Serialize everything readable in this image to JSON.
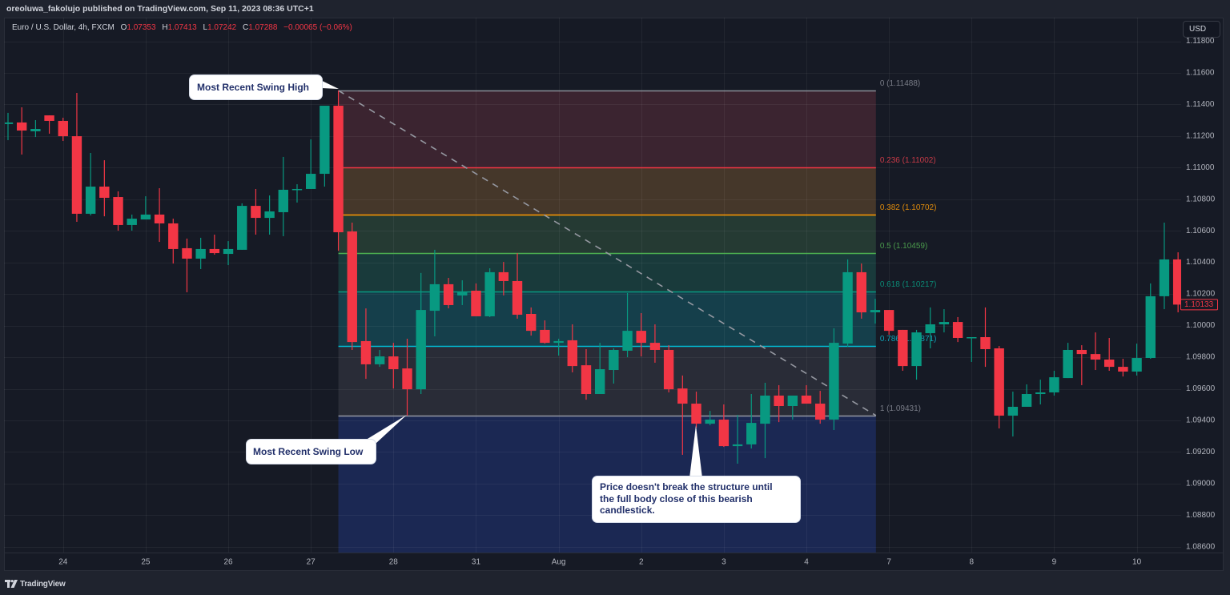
{
  "header": {
    "text": "oreoluwa_fakolujo published on TradingView.com, Sep 11, 2023 08:36 UTC+1"
  },
  "legend": {
    "symbol": "Euro / U.S. Dollar, 4h, FXCM",
    "o_label": "O",
    "o": "1.07353",
    "h_label": "H",
    "h": "1.07413",
    "l_label": "L",
    "l": "1.07242",
    "c_label": "C",
    "c": "1.07288",
    "change": "−0.00065 (−0.06%)"
  },
  "price_axis": {
    "currency_button": "USD"
  },
  "footer": {
    "brand": "TradingView"
  },
  "colors": {
    "up": "#089981",
    "down": "#f23645",
    "background": "#161a25",
    "axis_text": "#b2b5be"
  },
  "callouts": {
    "swing_high": {
      "lines": [
        "Most Recent Swing High"
      ]
    },
    "swing_low": {
      "lines": [
        "Most Recent Swing Low"
      ]
    },
    "structure": {
      "lines": [
        "Price doesn't break the structure until",
        "the full body close of this bearish",
        "candlestick."
      ]
    }
  },
  "chart_data": {
    "type": "bar",
    "style": "candlestick",
    "title": "Euro / U.S. Dollar, 4h, FXCM",
    "xlabel": "",
    "ylabel": "USD",
    "ylim": [
      1.0852,
      1.119
    ],
    "grid": true,
    "legend_position": "top-left",
    "y_ticks": [
      "1.11800",
      "1.11600",
      "1.11400",
      "1.11200",
      "1.11000",
      "1.10800",
      "1.10600",
      "1.10400",
      "1.10200",
      "1.10000",
      "1.09800",
      "1.09600",
      "1.09400",
      "1.09200",
      "1.09000",
      "1.08800",
      "1.08600"
    ],
    "x_ticks": [
      {
        "label": "24",
        "index": 4
      },
      {
        "label": "25",
        "index": 10
      },
      {
        "label": "26",
        "index": 16
      },
      {
        "label": "27",
        "index": 22
      },
      {
        "label": "28",
        "index": 28
      },
      {
        "label": "31",
        "index": 34
      },
      {
        "label": "Aug",
        "index": 40
      },
      {
        "label": "2",
        "index": 46
      },
      {
        "label": "3",
        "index": 52
      },
      {
        "label": "4",
        "index": 58
      },
      {
        "label": "7",
        "index": 64
      },
      {
        "label": "8",
        "index": 70
      },
      {
        "label": "9",
        "index": 76
      },
      {
        "label": "10",
        "index": 82
      }
    ],
    "last_price": "1.10133",
    "series": [
      {
        "name": "EURUSD 4h",
        "fields": [
          "open",
          "high",
          "low",
          "close"
        ],
        "ohlc": [
          [
            1.11276,
            1.11347,
            1.11174,
            1.11286
          ],
          [
            1.11286,
            1.11382,
            1.11083,
            1.11235
          ],
          [
            1.1123,
            1.11301,
            1.11194,
            1.11245
          ],
          [
            1.11331,
            1.11331,
            1.11215,
            1.11296
          ],
          [
            1.11296,
            1.11316,
            1.11169,
            1.11199
          ],
          [
            1.11199,
            1.11473,
            1.10657,
            1.10708
          ],
          [
            1.10708,
            1.11093,
            1.10698,
            1.1088
          ],
          [
            1.1088,
            1.11047,
            1.10692,
            1.10809
          ],
          [
            1.10814,
            1.1085,
            1.10601,
            1.10637
          ],
          [
            1.10637,
            1.10703,
            1.10601,
            1.10677
          ],
          [
            1.10672,
            1.10819,
            1.10672,
            1.10703
          ],
          [
            1.10703,
            1.1087,
            1.1053,
            1.10647
          ],
          [
            1.10647,
            1.10677,
            1.10393,
            1.10485
          ],
          [
            1.1049,
            1.10551,
            1.10211,
            1.10424
          ],
          [
            1.10424,
            1.10556,
            1.10358,
            1.10485
          ],
          [
            1.10485,
            1.10576,
            1.10449,
            1.10459
          ],
          [
            1.10454,
            1.10535,
            1.10383,
            1.10485
          ],
          [
            1.1048,
            1.10774,
            1.1048,
            1.10758
          ],
          [
            1.10758,
            1.10865,
            1.10576,
            1.10682
          ],
          [
            1.10682,
            1.10824,
            1.10576,
            1.10723
          ],
          [
            1.10718,
            1.11068,
            1.10566,
            1.1086
          ],
          [
            1.1086,
            1.10895,
            1.10779,
            1.10865
          ],
          [
            1.10865,
            1.11179,
            1.10865,
            1.10961
          ],
          [
            1.10961,
            1.11392,
            1.1088,
            1.11392
          ],
          [
            1.11392,
            1.11488,
            1.10474,
            1.10591
          ],
          [
            1.10596,
            1.10652,
            1.09846,
            1.09896
          ],
          [
            1.09902,
            1.10109,
            1.09663,
            1.09755
          ],
          [
            1.09755,
            1.09846,
            1.09739,
            1.09805
          ],
          [
            1.09805,
            1.09891,
            1.09602,
            1.09724
          ],
          [
            1.09729,
            1.09917,
            1.09431,
            1.09597
          ],
          [
            1.09597,
            1.10333,
            1.09567,
            1.10099
          ],
          [
            1.10094,
            1.1048,
            1.09932,
            1.10262
          ],
          [
            1.10262,
            1.10302,
            1.10109,
            1.1013
          ],
          [
            1.10191,
            1.10287,
            1.1013,
            1.10216
          ],
          [
            1.10221,
            1.10267,
            1.10059,
            1.10059
          ],
          [
            1.10059,
            1.10363,
            1.10054,
            1.10338
          ],
          [
            1.10338,
            1.10403,
            1.10191,
            1.10282
          ],
          [
            1.10282,
            1.10459,
            1.10044,
            1.10069
          ],
          [
            1.10074,
            1.10115,
            1.09937,
            1.09967
          ],
          [
            1.09973,
            1.10033,
            1.09886,
            1.09891
          ],
          [
            1.09891,
            1.09917,
            1.0981,
            1.09902
          ],
          [
            1.09907,
            1.10008,
            1.09704,
            1.09744
          ],
          [
            1.09749,
            1.09851,
            1.09531,
            1.09567
          ],
          [
            1.09567,
            1.09891,
            1.09567,
            1.09724
          ],
          [
            1.09719,
            1.09856,
            1.09633,
            1.09846
          ],
          [
            1.09841,
            1.10206,
            1.098,
            1.09967
          ],
          [
            1.09967,
            1.10079,
            1.09805,
            1.09891
          ],
          [
            1.09891,
            1.10008,
            1.09765,
            1.09846
          ],
          [
            1.09846,
            1.09876,
            1.09577,
            1.09597
          ],
          [
            1.09602,
            1.09684,
            1.09182,
            1.09506
          ],
          [
            1.09506,
            1.09582,
            1.09354,
            1.09379
          ],
          [
            1.09379,
            1.0946,
            1.09369,
            1.09405
          ],
          [
            1.09405,
            1.09501,
            1.09232,
            1.09237
          ],
          [
            1.09237,
            1.09435,
            1.09126,
            1.09248
          ],
          [
            1.09248,
            1.09567,
            1.09222,
            1.09384
          ],
          [
            1.09379,
            1.09638,
            1.09161,
            1.09557
          ],
          [
            1.09557,
            1.09623,
            1.09389,
            1.09491
          ],
          [
            1.09491,
            1.09557,
            1.09405,
            1.09557
          ],
          [
            1.09557,
            1.09623,
            1.09506,
            1.09506
          ],
          [
            1.09506,
            1.09587,
            1.09379,
            1.09405
          ],
          [
            1.09405,
            1.09983,
            1.09339,
            1.09891
          ],
          [
            1.09886,
            1.10419,
            1.09866,
            1.10338
          ],
          [
            1.10338,
            1.10393,
            1.10044,
            1.10084
          ],
          [
            1.10084,
            1.1017,
            1.10013,
            1.10099
          ],
          [
            1.10099,
            1.10099,
            1.09942,
            1.09967
          ],
          [
            1.09973,
            1.09973,
            1.09714,
            1.09744
          ],
          [
            1.09744,
            1.09973,
            1.09658,
            1.09957
          ],
          [
            1.09952,
            1.10115,
            1.09856,
            1.10008
          ],
          [
            1.10008,
            1.10104,
            1.09957,
            1.10023
          ],
          [
            1.10023,
            1.10054,
            1.09896,
            1.09922
          ],
          [
            1.09922,
            1.09927,
            1.0977,
            1.09927
          ],
          [
            1.09927,
            1.10115,
            1.09739,
            1.09851
          ],
          [
            1.09856,
            1.09871,
            1.09349,
            1.0943
          ],
          [
            1.0943,
            1.09582,
            1.09298,
            1.09486
          ],
          [
            1.09486,
            1.09628,
            1.09486,
            1.09567
          ],
          [
            1.09567,
            1.09658,
            1.09501,
            1.09577
          ],
          [
            1.09577,
            1.09714,
            1.09557,
            1.09673
          ],
          [
            1.09668,
            1.09891,
            1.09668,
            1.09846
          ],
          [
            1.09846,
            1.09876,
            1.09623,
            1.0982
          ],
          [
            1.0982,
            1.09957,
            1.09719,
            1.09785
          ],
          [
            1.09785,
            1.09922,
            1.09714,
            1.09739
          ],
          [
            1.09739,
            1.0979,
            1.09678,
            1.09709
          ],
          [
            1.09709,
            1.09886,
            1.09684,
            1.09795
          ],
          [
            1.09795,
            1.10267,
            1.0979,
            1.10186
          ],
          [
            1.10186,
            1.10652,
            1.10104,
            1.10419
          ],
          [
            1.10419,
            1.10464,
            1.10084,
            1.10133
          ]
        ]
      }
    ],
    "fibonacci_retracement": {
      "start_index": 24,
      "end_index": 63.05,
      "trend_line": {
        "from_price": 1.11488,
        "to_price": 1.09431,
        "style": "dashed",
        "color": "#9598a1"
      },
      "levels": [
        {
          "ratio": "0",
          "price": 1.11488,
          "label": "0 (1.11488)",
          "line_color": "#8a8d96",
          "text_color": "#787b86",
          "fill": "#3b2430"
        },
        {
          "ratio": "0.236",
          "price": 1.11002,
          "label": "0.236 (1.11002)",
          "line_color": "#f23645",
          "text_color": "#c73a47",
          "fill": "#45372a"
        },
        {
          "ratio": "0.382",
          "price": 1.10702,
          "label": "0.382 (1.10702)",
          "line_color": "#ff9800",
          "text_color": "#e08c0c",
          "fill": "#253a33"
        },
        {
          "ratio": "0.5",
          "price": 1.10459,
          "label": "0.5 (1.10459)",
          "line_color": "#4caf50",
          "text_color": "#4a9a4c",
          "fill": "#193a3b"
        },
        {
          "ratio": "0.618",
          "price": 1.10217,
          "label": "0.618 (1.10217)",
          "line_color": "#089981",
          "text_color": "#0b8a76",
          "fill": "#153f4b"
        },
        {
          "ratio": "0.786",
          "price": 1.09871,
          "label": "0.786 (1.09871)",
          "line_color": "#00bcd4",
          "text_color": "#0fa2b6",
          "fill": "#292c37"
        },
        {
          "ratio": "1",
          "price": 1.09431,
          "label": "1 (1.09431)",
          "line_color": "#9598a1",
          "text_color": "#787b86",
          "fill": "#1b2853"
        }
      ]
    },
    "annotations": [
      {
        "text": "Most Recent Swing High",
        "points_to_index": 24,
        "price": 1.11488
      },
      {
        "text": "Most Recent Swing Low",
        "points_to_index": 29,
        "price": 1.09431
      },
      {
        "text": "Price doesn't break the structure until the full body close of this bearish candlestick.",
        "points_to_index": 50,
        "price": 1.09379
      }
    ]
  }
}
